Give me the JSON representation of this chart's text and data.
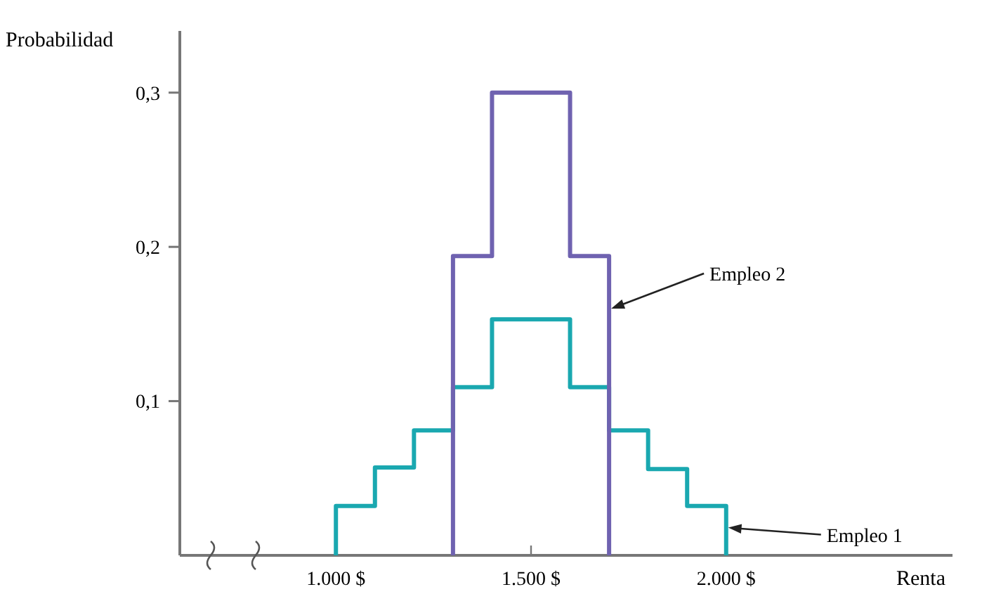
{
  "chart_data": {
    "type": "step",
    "xlabel": "Renta",
    "ylabel": "Probabilidad",
    "xlim": [
      600,
      2580
    ],
    "ylim": [
      0,
      0.34
    ],
    "xticks": [
      {
        "value": 1000,
        "label": "1.000 $"
      },
      {
        "value": 1500,
        "label": "1.500 $"
      },
      {
        "value": 2000,
        "label": "2.000 $"
      }
    ],
    "yticks": [
      {
        "value": 0.1,
        "label": "0,1"
      },
      {
        "value": 0.2,
        "label": "0,2"
      },
      {
        "value": 0.3,
        "label": "0,3"
      }
    ],
    "series": [
      {
        "color": "#1aa8b0",
        "x": [
          1000,
          1000,
          1100,
          1200,
          1300,
          1400,
          1600,
          1700,
          1800,
          1900,
          2000
        ],
        "values": [
          0,
          0.032,
          0.057,
          0.081,
          0.109,
          0.153,
          0.109,
          0.081,
          0.056,
          0.032,
          0
        ]
      },
      {
        "color": "#6f62b0",
        "x": [
          1300,
          1300,
          1400,
          1600,
          1700
        ],
        "values": [
          0,
          0.194,
          0.3,
          0.194,
          0
        ]
      }
    ],
    "annotations": [
      {
        "text": "Empleo 2",
        "x": 1700,
        "y": 0.16
      },
      {
        "text": "Empleo 1",
        "x": 2000,
        "y": 0.018
      }
    ],
    "grid": false,
    "marker": "none",
    "line_style": "solid"
  }
}
